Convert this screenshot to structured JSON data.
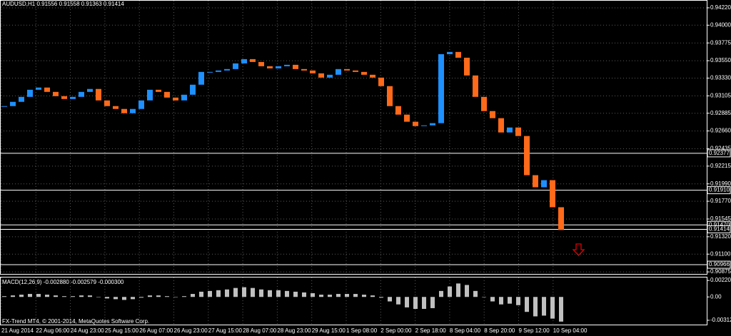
{
  "chart_data": {
    "type": "candlestick",
    "title": "AUDUSD,H1  0.91556 0.91558 0.91363 0.91414",
    "up_color": "#1e90ff",
    "down_color": "#ff6a1a",
    "values": [
      0.92975,
      0.93029,
      0.93092,
      0.93182,
      0.9321,
      0.93155,
      0.93101,
      0.93065,
      0.93092,
      0.93155,
      0.93192,
      0.93047,
      0.92975,
      0.92939,
      0.92885,
      0.92939,
      0.93047,
      0.93182,
      0.93155,
      0.93083,
      0.93047,
      0.93119,
      0.93246,
      0.93408,
      0.93408,
      0.93426,
      0.93444,
      0.93516,
      0.9357,
      0.93534,
      0.9348,
      0.93453,
      0.9348,
      0.93498,
      0.93444,
      0.93426,
      0.9339,
      0.93336,
      0.93372,
      0.93444,
      0.93426,
      0.93408,
      0.93372,
      0.93336,
      0.93228,
      0.92975,
      0.92867,
      0.92777,
      0.92722,
      0.92731,
      0.92759,
      0.93633,
      0.93661,
      0.93588,
      0.93363,
      0.93092,
      0.92912,
      0.92822,
      0.92641,
      0.92704,
      0.92596,
      0.921,
      0.91947,
      0.92037,
      0.91694,
      0.91406
    ],
    "ylim": [
      0.9084,
      0.9431
    ],
    "yticks": [
      {
        "value": 0.9422,
        "label": "0.94220"
      },
      {
        "value": 0.94,
        "label": "0.94000"
      },
      {
        "value": 0.93775,
        "label": "0.93775"
      },
      {
        "value": 0.9355,
        "label": "0.93550"
      },
      {
        "value": 0.9333,
        "label": "0.93330"
      },
      {
        "value": 0.93105,
        "label": "0.93105"
      },
      {
        "value": 0.92885,
        "label": "0.92885"
      },
      {
        "value": 0.9266,
        "label": "0.92660"
      },
      {
        "value": 0.92435,
        "label": "0.92435"
      },
      {
        "value": 0.92215,
        "label": "0.92215"
      },
      {
        "value": 0.9199,
        "label": "0.91990"
      },
      {
        "value": 0.9177,
        "label": "0.91770"
      },
      {
        "value": 0.91545,
        "label": "0.91545"
      },
      {
        "value": 0.9132,
        "label": "0.91320"
      },
      {
        "value": 0.911,
        "label": "0.91100"
      },
      {
        "value": 0.90875,
        "label": "0.90875"
      }
    ],
    "levels": [
      {
        "value": 0.92377,
        "label": "0.92377"
      },
      {
        "value": 0.9191,
        "label": "0.91910"
      },
      {
        "value": 0.9147,
        "label": "0.91470"
      },
      {
        "value": 0.91414,
        "label": "0.91414"
      },
      {
        "value": 0.90966,
        "label": "0.90966"
      }
    ],
    "xticks": [
      "21 Aug 2014",
      "22 Aug 06:00",
      "24 Aug 23:00",
      "25 Aug 15:00",
      "26 Aug 07:00",
      "26 Aug 23:00",
      "27 Aug 15:00",
      "28 Aug 07:00",
      "28 Aug 23:00",
      "29 Aug 15:00",
      "1 Sep 08:00",
      "2 Sep 00:00",
      "2 Sep 18:00",
      "8 Sep 04:00",
      "8 Sep 20:00",
      "9 Sep 12:00",
      "10 Sep 04:00"
    ],
    "grid": true,
    "macd": {
      "title": "MACD(12,26,9) -0.002880 -0.002579 -0.000300",
      "color": "#c0c0c0",
      "values": [
        0.0001,
        0.0002,
        0.0003,
        0.0004,
        0.0004,
        0.0003,
        0.0002,
        0.0001,
        0.0001,
        0.0002,
        0.0002,
        0,
        -0.0002,
        -0.0003,
        -0.0004,
        -0.0003,
        -0.0001,
        0.0002,
        0.0002,
        0.0001,
        0,
        0.0001,
        0.0004,
        0.0007,
        0.0008,
        0.0009,
        0.001,
        0.0012,
        0.0013,
        0.0012,
        0.001,
        0.0009,
        0.0009,
        0.0008,
        0.0007,
        0.0006,
        0.0005,
        0.0003,
        0.0003,
        0.0004,
        0.0004,
        0.0004,
        0.0003,
        0.0002,
        -0.0001,
        -0.0006,
        -0.001,
        -0.0014,
        -0.0016,
        -0.0016,
        -0.0015,
        0.0008,
        0.0014,
        0.0018,
        0.0016,
        0.0008,
        0,
        -0.0006,
        -0.001,
        -0.0009,
        -0.0011,
        -0.002,
        -0.0026,
        -0.0025,
        -0.0029,
        -0.0033
      ],
      "ylim": [
        -0.0037,
        0.0026
      ],
      "yticks": [
        0.002207,
        {
          "value": 0,
          "label": "0.00"
        },
        -0.003122
      ]
    },
    "footer": "FX-Trend MT4, © 2001-2014, MetaQuotes Software Corp."
  }
}
